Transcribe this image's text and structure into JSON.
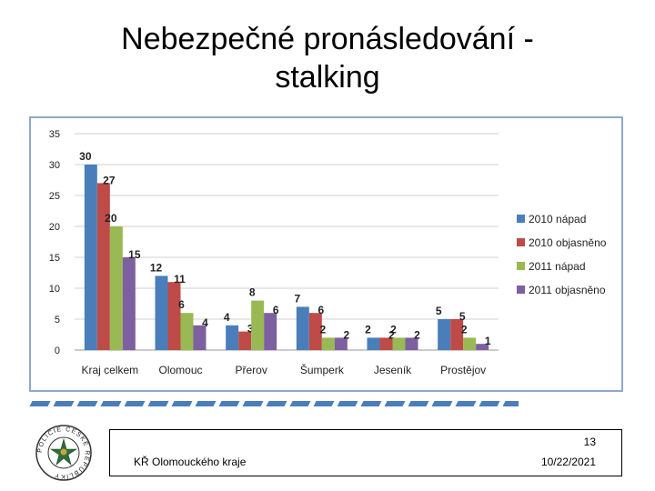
{
  "slide": {
    "title_line1": "Nebezpečné pronásledování -",
    "title_line2": "stalking",
    "page_number": "13",
    "organization": "KŘ Olomouckého kraje",
    "date": "10/22/2021"
  },
  "logo": {
    "text": "POLICIE ČESKÉ REPUBLIKY",
    "icon": "police-star-seal-icon"
  },
  "chart_data": {
    "type": "bar",
    "categories": [
      "Kraj celkem",
      "Olomouc",
      "Přerov",
      "Šumperk",
      "Jeseník",
      "Prostějov"
    ],
    "series": [
      {
        "name": "2010 nápad",
        "color": "#4a7ebb",
        "values": [
          30,
          12,
          4,
          7,
          2,
          5
        ]
      },
      {
        "name": "2010 objasněno",
        "color": "#be4b48",
        "values": [
          27,
          11,
          3,
          6,
          2,
          5
        ]
      },
      {
        "name": "2011 nápad",
        "color": "#98b954",
        "values": [
          20,
          6,
          8,
          2,
          2,
          2
        ]
      },
      {
        "name": "2011 objasněno",
        "color": "#7d60a0",
        "values": [
          15,
          4,
          6,
          2,
          2,
          1
        ]
      }
    ],
    "ylim": [
      0,
      35
    ],
    "yticks": [
      0,
      5,
      10,
      15,
      20,
      25,
      30,
      35
    ],
    "grid": true,
    "legend_position": "right",
    "data_labels": true,
    "title": "",
    "xlabel": "",
    "ylabel": ""
  }
}
